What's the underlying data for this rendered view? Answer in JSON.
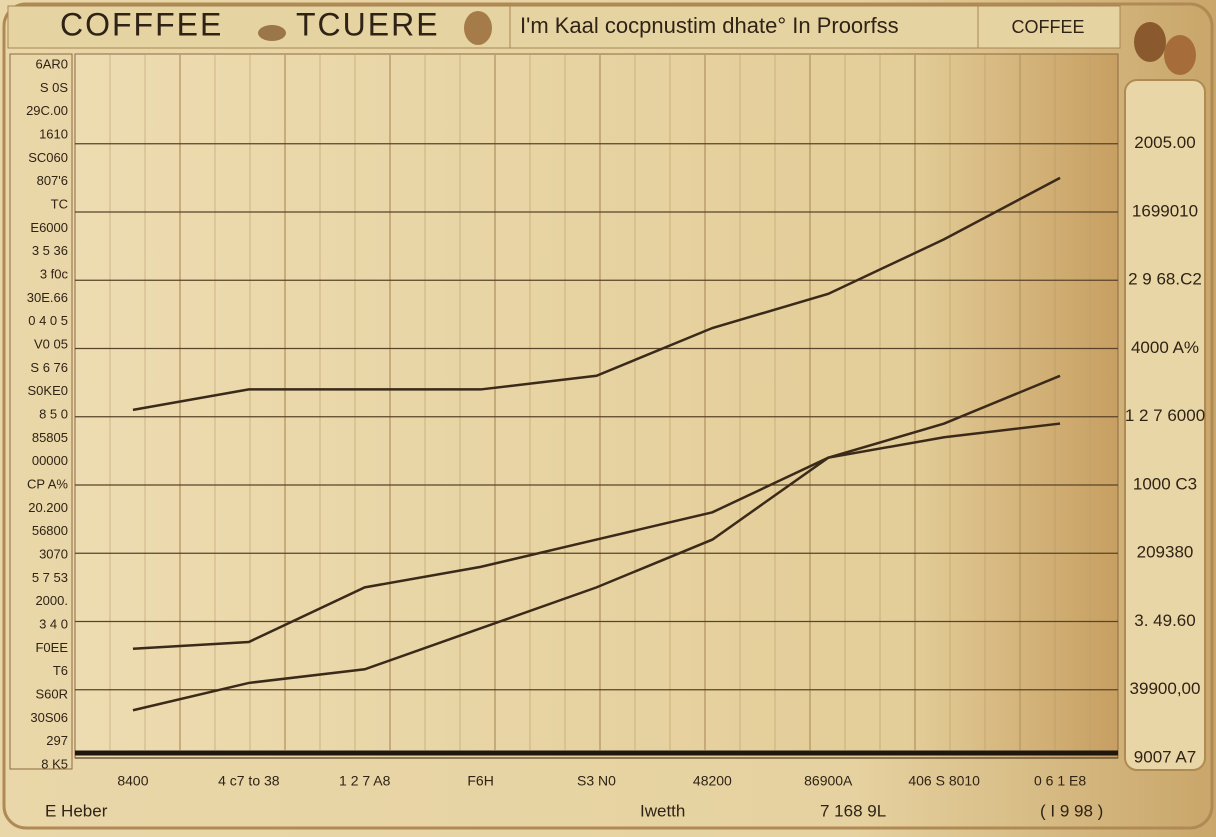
{
  "chart_data": {
    "type": "line",
    "title": "COFFFEE",
    "subtitle": "TCUERE",
    "heading": "I'm Kaal cocpnustim dhate° In Proorfss",
    "badge": "COFFEE",
    "categories": [
      "8400",
      "4 c7 to 38",
      "1 2 7 A8",
      "F6H",
      "S3 N0",
      "48200",
      "86900A",
      "406 S 8010",
      "0 6 1 E8"
    ],
    "series": [
      {
        "color": "#3b2a1a",
        "values": [
          5.1,
          5.4,
          5.4,
          5.4,
          5.6,
          6.3,
          6.8,
          7.6,
          8.5
        ]
      },
      {
        "color": "#3b2a1a",
        "values": [
          1.6,
          1.7,
          2.5,
          2.8,
          3.2,
          3.6,
          4.4,
          4.9,
          5.6
        ]
      },
      {
        "color": "#3b2a1a",
        "values": [
          0.7,
          1.1,
          1.3,
          1.9,
          2.5,
          3.2,
          4.4,
          4.7,
          4.9
        ]
      }
    ],
    "ylim": [
      0,
      10.3
    ],
    "yticks": [
      {
        "value": 0,
        "label": "9007 A7"
      },
      {
        "value": 1,
        "label": "39900,00"
      },
      {
        "value": 2,
        "label": "3. 49.60"
      },
      {
        "value": 3,
        "label": "209380"
      },
      {
        "value": 4,
        "label": "1000 C3"
      },
      {
        "value": 5,
        "label": "1 2 7 6000"
      },
      {
        "value": 6,
        "label": "4000 A%"
      },
      {
        "value": 7,
        "label": "2 9 68.C2"
      },
      {
        "value": 8,
        "label": "1699010"
      },
      {
        "value": 9,
        "label": "2005.00"
      }
    ],
    "grid": true,
    "y_axis_side": "right",
    "left_labels": [
      "6AR0",
      "S 0S",
      "29C.00",
      "1610",
      "SC060",
      "807'6",
      "TC",
      "E6000",
      "3 5 36",
      "3 f0c",
      "30E.66",
      "0 4 0 5",
      "V0 05",
      "S 6 76",
      "S0KE0",
      "8 5 0",
      "85805",
      "00000",
      "CP A%",
      "20.200",
      "56800",
      "3070",
      "5 7 53",
      "2000.",
      "3 4 0",
      "F0EE",
      "T6",
      "S60R",
      "30S06",
      "297",
      "8 K5"
    ],
    "footer": [
      "E Heber",
      "Iwetth",
      "7 168 9L",
      "( I 9 98 )"
    ]
  }
}
